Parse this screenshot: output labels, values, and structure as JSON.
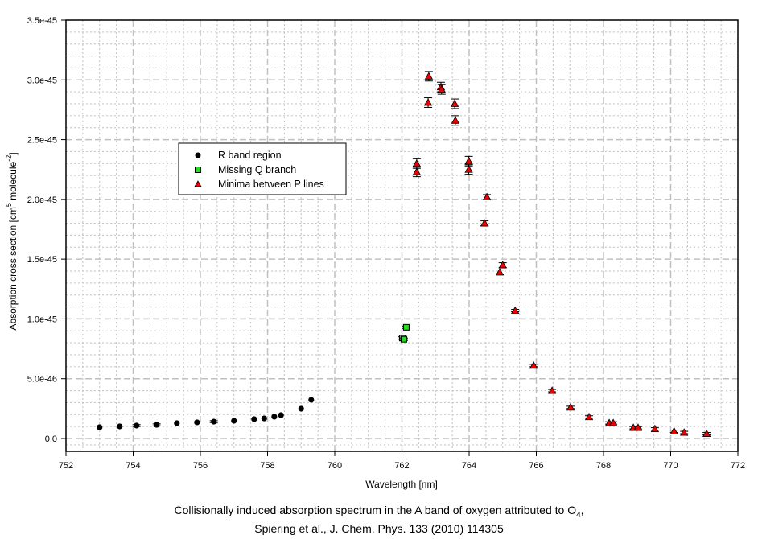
{
  "chart_data": {
    "type": "scatter",
    "xlabel": "Wavelength [nm]",
    "ylabel_parts": [
      "Absorption cross section [cm",
      "5",
      " molecule",
      "-2",
      "]"
    ],
    "xlim": [
      752,
      772
    ],
    "ylim": [
      0,
      3.5e-45
    ],
    "xticks": [
      752,
      754,
      756,
      758,
      760,
      762,
      764,
      766,
      768,
      770,
      772
    ],
    "xtick_labels": [
      "752",
      "754",
      "756",
      "758",
      "760",
      "762",
      "764",
      "766",
      "768",
      "770",
      "772"
    ],
    "yticks": [
      0,
      5e-46,
      1e-45,
      1.5e-45,
      2e-45,
      2.5e-45,
      3e-45,
      3.5e-45
    ],
    "ytick_labels": [
      "0.0",
      "5.0e-46",
      "1.0e-45",
      "1.5e-45",
      "2.0e-45",
      "2.5e-45",
      "3.0e-45",
      "3.5e-45"
    ],
    "grid": true,
    "legend_position": "upper-left",
    "series": [
      {
        "name": "R band region",
        "marker": "circle",
        "color": "#000000",
        "x": [
          753.0,
          753.6,
          754.1,
          754.7,
          755.3,
          755.9,
          756.4,
          757.0,
          757.6,
          757.9,
          758.2,
          758.4,
          759.0,
          759.3
        ],
        "y": [
          9.4e-47,
          1.01e-46,
          1.08e-46,
          1.14e-46,
          1.28e-46,
          1.35e-46,
          1.41e-46,
          1.48e-46,
          1.62e-46,
          1.68e-46,
          1.82e-46,
          1.95e-46,
          2.49e-46,
          3.23e-46
        ],
        "yerr": [
          5e-48,
          5e-48,
          8e-48,
          8e-48,
          5e-48,
          5e-48,
          8e-48,
          5e-48,
          5e-48,
          5e-48,
          5e-48,
          5e-48,
          5e-48,
          5e-48
        ]
      },
      {
        "name": "Missing Q branch",
        "marker": "square",
        "color": "#22dd22",
        "x": [
          762.01,
          762.06,
          762.13
        ],
        "y": [
          8.4e-46,
          8.3e-46,
          9.3e-46
        ],
        "yerr": [
          1e-47,
          1e-47,
          1e-47
        ]
      },
      {
        "name": "Minima between P lines",
        "marker": "triangle",
        "color": "#ee0000",
        "x": [
          762.8,
          763.16,
          763.18,
          762.78,
          763.57,
          763.59,
          762.44,
          762.44,
          763.99,
          763.99,
          764.53,
          764.46,
          765.0,
          764.91,
          765.37,
          765.92,
          766.47,
          767.02,
          767.57,
          768.17,
          768.29,
          768.89,
          769.03,
          769.53,
          770.1,
          770.4,
          771.07
        ],
        "y": [
          3.03e-45,
          2.94e-45,
          2.92e-45,
          2.81e-45,
          2.8e-45,
          2.66e-45,
          2.3e-45,
          2.23e-45,
          2.32e-45,
          2.25e-45,
          2.02e-45,
          1.8e-45,
          1.45e-45,
          1.39e-45,
          1.07e-45,
          6.1e-46,
          4e-46,
          2.6e-46,
          1.8e-46,
          1.3e-46,
          1.3e-46,
          9e-47,
          9e-47,
          8e-47,
          6e-47,
          5e-47,
          4e-47
        ],
        "yerr": [
          4e-47,
          4e-47,
          4e-47,
          4e-47,
          4e-47,
          4e-47,
          4e-47,
          4e-47,
          4e-47,
          4e-47,
          2e-47,
          2e-47,
          2e-47,
          2e-47,
          1e-47,
          1e-47,
          1e-47,
          1e-47,
          1e-47,
          1e-47,
          1e-47,
          1e-47,
          1e-47,
          1e-47,
          1e-47,
          1e-47,
          1e-47
        ]
      }
    ]
  },
  "caption": {
    "line1_main": "Collisionally induced absorption spectrum in the A band of oxygen attributed to O",
    "line1_sub": "4",
    "line1_end": ",",
    "line2": "Spiering et al., J. Chem. Phys. 133 (2010) 114305"
  }
}
